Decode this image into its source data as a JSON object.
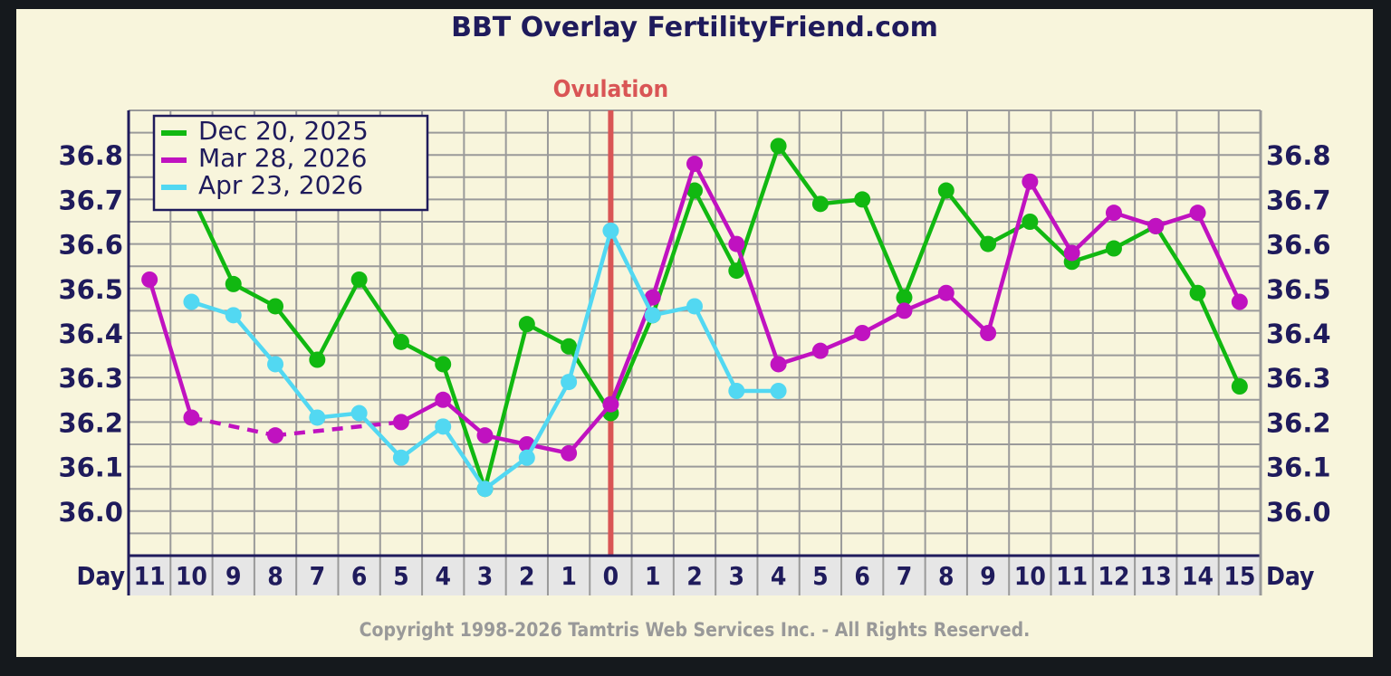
{
  "colors": {
    "background": "#f8f5dc",
    "page": "#15191d",
    "grid": "#9a9a9a",
    "axis_text": "#1f1b5c",
    "ovulation": "#d95555",
    "copyright": "#999999",
    "xaxis_bg": "#e6e6e6"
  },
  "chart_data": {
    "type": "line",
    "title": "BBT Overlay FertilityFriend.com",
    "ovulation_label": "Ovulation",
    "ovulation_day": "0",
    "x_label_left": "Day",
    "x_label_right": "Day",
    "categories": [
      "11",
      "10",
      "9",
      "8",
      "7",
      "6",
      "5",
      "4",
      "3",
      "2",
      "1",
      "0",
      "1",
      "2",
      "3",
      "4",
      "5",
      "6",
      "7",
      "8",
      "9",
      "10",
      "11",
      "12",
      "13",
      "14",
      "15"
    ],
    "ylim": [
      35.9,
      36.9
    ],
    "yticks": [
      "36.8",
      "36.7",
      "36.6",
      "36.5",
      "36.4",
      "36.3",
      "36.2",
      "36.1",
      "36.0"
    ],
    "ytick_values": [
      36.8,
      36.7,
      36.6,
      36.5,
      36.4,
      36.3,
      36.2,
      36.1,
      36.0
    ],
    "grid": true,
    "legend_position": "top-left",
    "series": [
      {
        "name": "Dec 20, 2025",
        "color": "#11b811",
        "values": [
          null,
          36.71,
          36.51,
          36.46,
          36.34,
          36.52,
          36.38,
          36.33,
          36.05,
          36.42,
          36.37,
          36.22,
          36.44,
          36.72,
          36.54,
          36.82,
          36.69,
          36.7,
          36.48,
          36.72,
          36.6,
          36.65,
          36.56,
          36.59,
          36.64,
          36.49,
          36.28
        ],
        "dashed_gaps": []
      },
      {
        "name": "Mar 28, 2026",
        "color": "#c012c0",
        "values": [
          36.52,
          36.21,
          null,
          36.17,
          null,
          null,
          36.2,
          36.25,
          36.17,
          36.15,
          36.13,
          36.24,
          36.48,
          36.78,
          36.6,
          36.33,
          36.36,
          36.4,
          36.45,
          36.49,
          36.4,
          36.74,
          36.58,
          36.67,
          36.64,
          36.67,
          36.47
        ],
        "dashed_gaps": [
          [
            1,
            3
          ],
          [
            3,
            6
          ]
        ]
      },
      {
        "name": "Apr 23, 2026",
        "color": "#52d8f2",
        "values": [
          null,
          36.47,
          36.44,
          36.33,
          36.21,
          36.22,
          36.12,
          36.19,
          36.05,
          36.12,
          36.29,
          36.63,
          36.44,
          36.46,
          36.27,
          36.27,
          null,
          null,
          null,
          null,
          null,
          null,
          null,
          null,
          null,
          null,
          null
        ],
        "dashed_gaps": []
      }
    ]
  },
  "copyright": "Copyright 1998-2026 Tamtris Web Services Inc. - All Rights Reserved."
}
